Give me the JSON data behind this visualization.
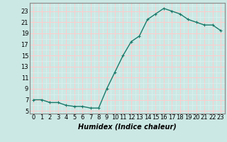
{
  "x": [
    0,
    1,
    2,
    3,
    4,
    5,
    6,
    7,
    8,
    9,
    10,
    11,
    12,
    13,
    14,
    15,
    16,
    17,
    18,
    19,
    20,
    21,
    22,
    23
  ],
  "y": [
    7,
    7,
    6.5,
    6.5,
    6,
    5.8,
    5.8,
    5.5,
    5.5,
    9,
    12,
    15,
    17.5,
    18.5,
    21.5,
    22.5,
    23.5,
    23,
    22.5,
    21.5,
    21,
    20.5,
    20.5,
    19.5
  ],
  "line_color": "#1a7a6a",
  "marker": "+",
  "marker_size": 3,
  "marker_edge_width": 0.8,
  "line_width": 1.0,
  "bg_color": "#cce8e4",
  "grid_major_color": "#ffcccc",
  "grid_minor_color": "#ddf2f0",
  "xlabel": "Humidex (Indice chaleur)",
  "xlabel_fontsize": 7,
  "xlabel_style": "italic",
  "xlabel_bold": true,
  "xtick_labels": [
    "0",
    "1",
    "2",
    "3",
    "4",
    "5",
    "6",
    "7",
    "8",
    "9",
    "10",
    "11",
    "12",
    "13",
    "14",
    "15",
    "16",
    "17",
    "18",
    "19",
    "20",
    "21",
    "22",
    "23"
  ],
  "ytick_values": [
    5,
    7,
    9,
    11,
    13,
    15,
    17,
    19,
    21,
    23
  ],
  "xlim": [
    -0.5,
    23.5
  ],
  "ylim": [
    4.5,
    24.5
  ],
  "tick_fontsize": 6,
  "spine_color": "#888888"
}
